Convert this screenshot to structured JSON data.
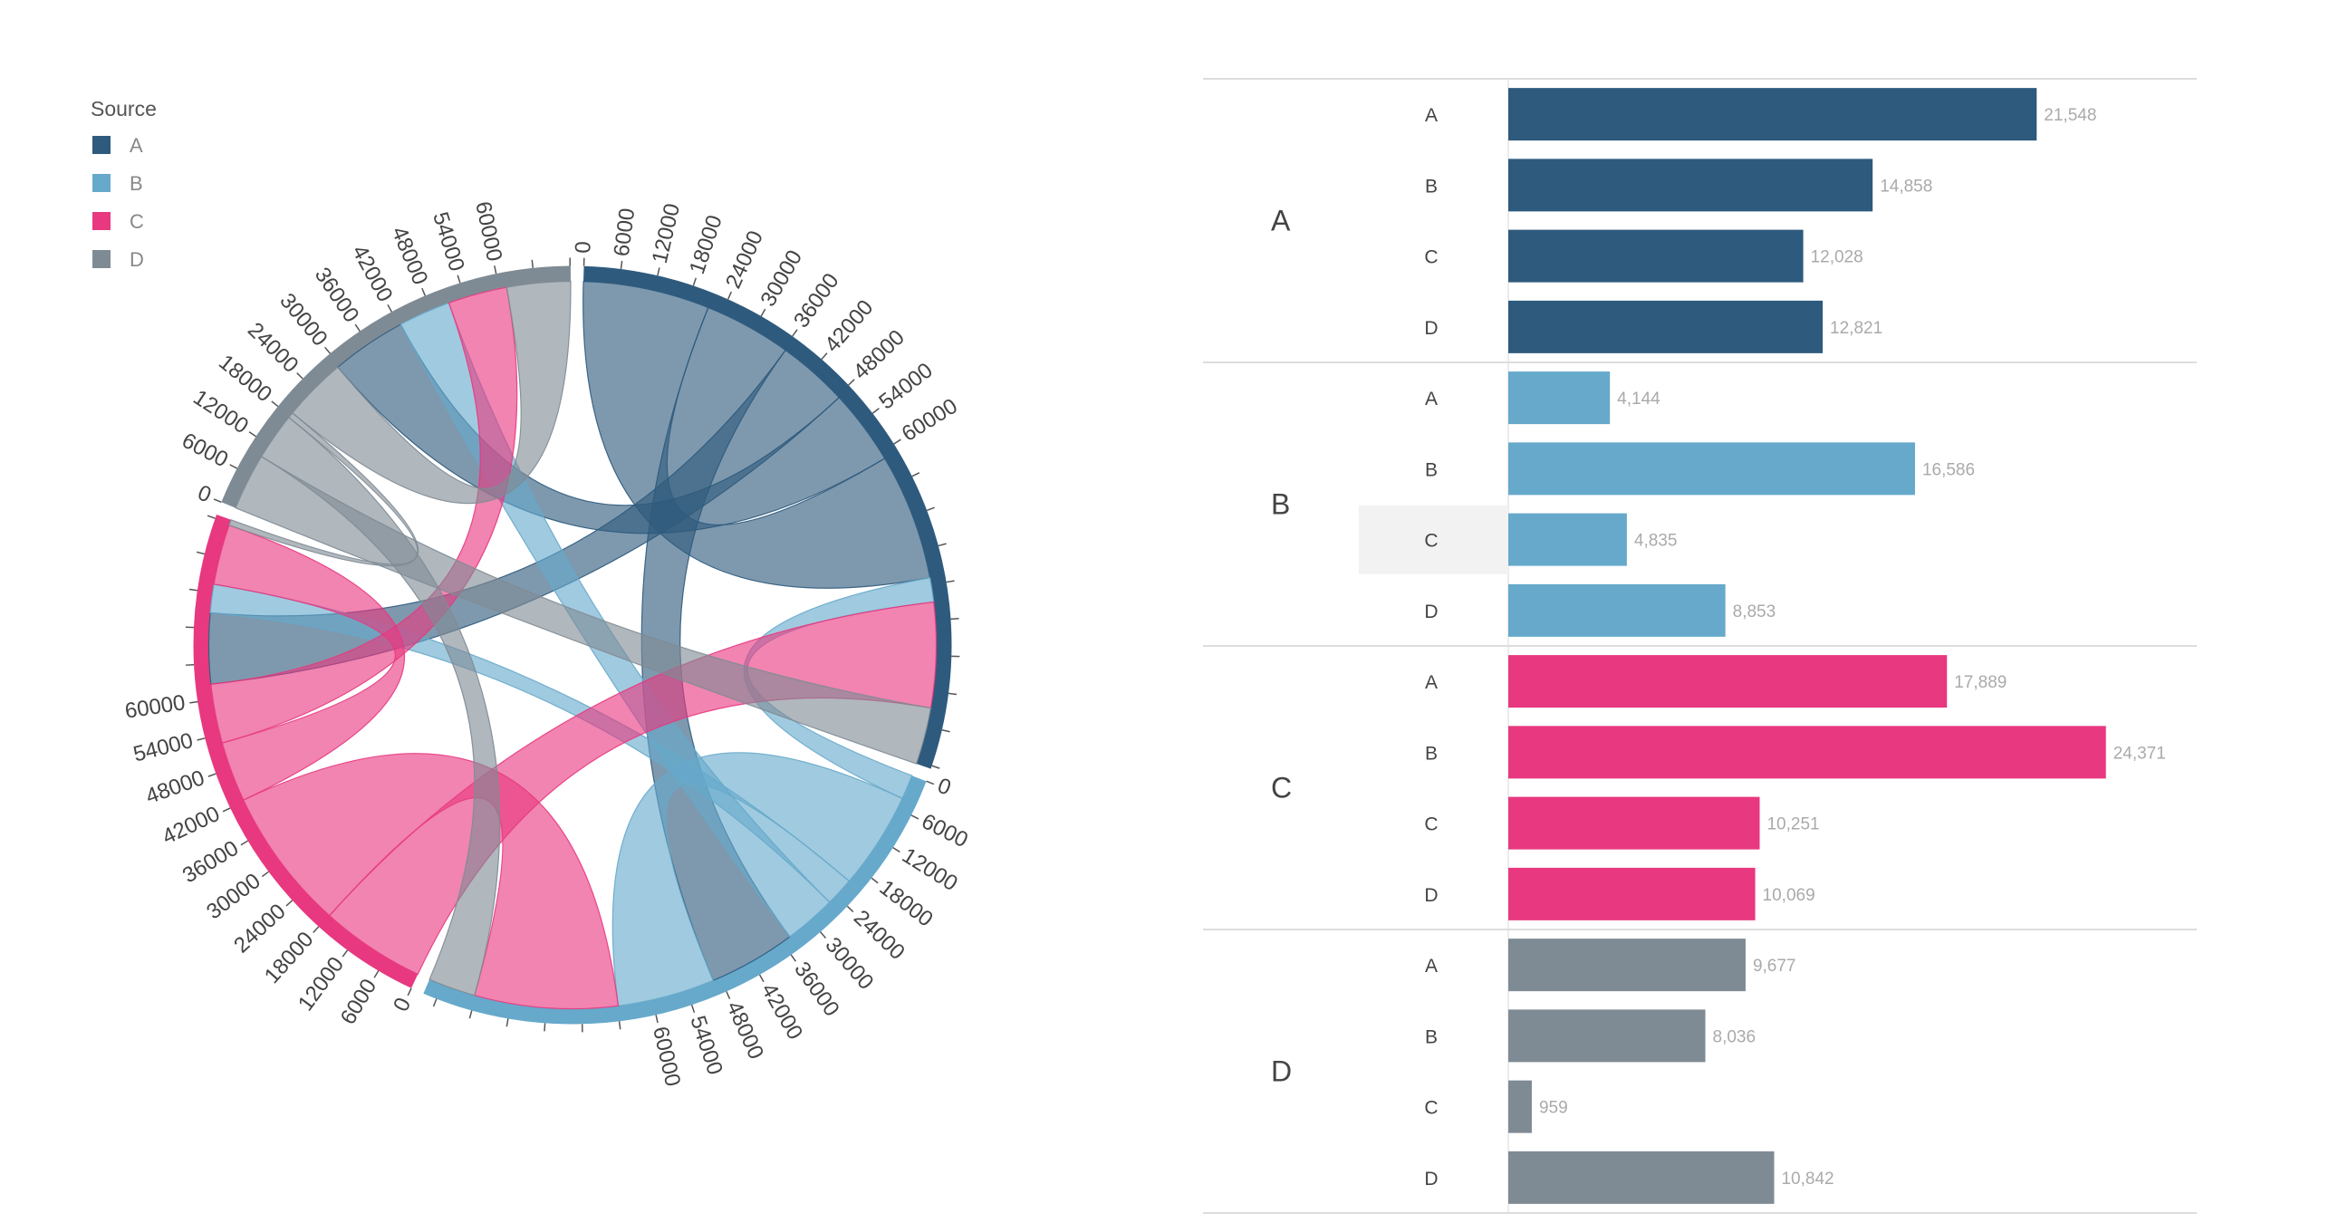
{
  "chart_data": [
    {
      "type": "chord",
      "legend": {
        "title": "Source",
        "items": [
          {
            "label": "A",
            "color": "#2e5a7d"
          },
          {
            "label": "B",
            "color": "#66a9cb"
          },
          {
            "label": "C",
            "color": "#e8387f"
          },
          {
            "label": "D",
            "color": "#7f8b94"
          }
        ]
      },
      "groups": [
        "A",
        "B",
        "C",
        "D"
      ],
      "matrix": [
        [
          21548,
          14858,
          12028,
          12821
        ],
        [
          4144,
          16586,
          4835,
          8853
        ],
        [
          17889,
          24371,
          10251,
          10069
        ],
        [
          9677,
          8036,
          959,
          10842
        ]
      ],
      "axis_tick_step": 6000,
      "axis_tick_labels": [
        "0",
        "6000",
        "12000",
        "18000",
        "24000",
        "30000",
        "36000",
        "42000",
        "48000",
        "54000",
        "60000"
      ]
    },
    {
      "type": "bar",
      "orientation": "horizontal",
      "groups": [
        "A",
        "B",
        "C",
        "D"
      ],
      "categories": [
        "A",
        "B",
        "C",
        "D"
      ],
      "series": [
        {
          "group": "A",
          "values": [
            21548,
            14858,
            12028,
            12821
          ],
          "labels": [
            "21,548",
            "14,858",
            "12,028",
            "12,821"
          ]
        },
        {
          "group": "B",
          "values": [
            4144,
            16586,
            4835,
            8853
          ],
          "labels": [
            "4,144",
            "16,586",
            "4,835",
            "8,853"
          ]
        },
        {
          "group": "C",
          "values": [
            17889,
            24371,
            10251,
            10069
          ],
          "labels": [
            "17,889",
            "24,371",
            "10,251",
            "10,069"
          ]
        },
        {
          "group": "D",
          "values": [
            9677,
            8036,
            959,
            10842
          ],
          "labels": [
            "9,677",
            "8,036",
            "959",
            "10,842"
          ]
        }
      ],
      "highlighted_row": {
        "group": "B",
        "category": "C"
      },
      "xlim": [
        0,
        29000
      ]
    }
  ]
}
